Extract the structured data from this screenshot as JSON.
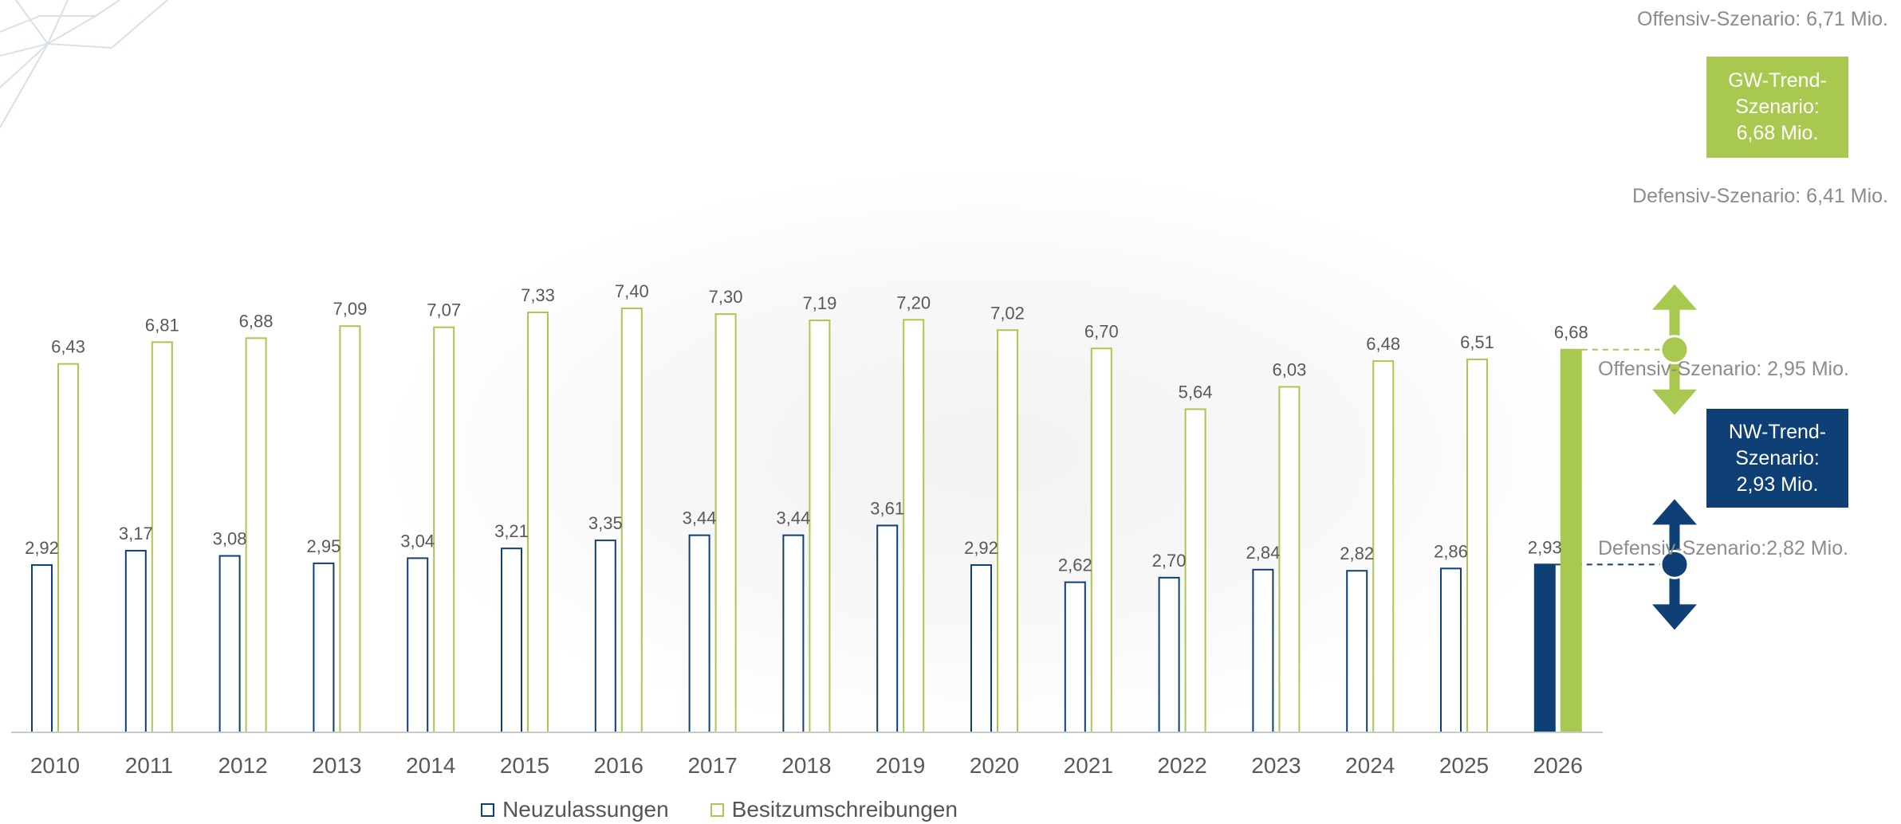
{
  "chart_data": {
    "type": "bar",
    "categories": [
      "2010",
      "2011",
      "2012",
      "2013",
      "2014",
      "2015",
      "2016",
      "2017",
      "2018",
      "2019",
      "2020",
      "2021",
      "2022",
      "2023",
      "2024",
      "2025",
      "2026"
    ],
    "series": [
      {
        "name": "Neuzulassungen",
        "values": [
          2.92,
          3.17,
          3.08,
          2.95,
          3.04,
          3.21,
          3.35,
          3.44,
          3.44,
          3.61,
          2.92,
          2.62,
          2.7,
          2.84,
          2.82,
          2.86,
          2.93
        ],
        "labels": [
          "2,92",
          "3,17",
          "3,08",
          "2,95",
          "3,04",
          "3,21",
          "3,35",
          "3,44",
          "3,44",
          "3,61",
          "2,92",
          "2,62",
          "2,70",
          "2,84",
          "2,82",
          "2,86",
          "2,93"
        ],
        "color": "#0e3f75"
      },
      {
        "name": "Besitzumschreibungen",
        "values": [
          6.43,
          6.81,
          6.88,
          7.09,
          7.07,
          7.33,
          7.4,
          7.3,
          7.19,
          7.2,
          7.02,
          6.7,
          5.64,
          6.03,
          6.48,
          6.51,
          6.68
        ],
        "labels": [
          "6,43",
          "6,81",
          "6,88",
          "7,09",
          "7,07",
          "7,33",
          "7,40",
          "7,30",
          "7,19",
          "7,20",
          "7,02",
          "6,70",
          "5,64",
          "6,03",
          "6,48",
          "6,51",
          "6,68"
        ],
        "color": "#a9c84f"
      }
    ],
    "forecast_category": "2026",
    "ylim": [
      0,
      7.4
    ],
    "legend_position": "bottom",
    "grid": false
  },
  "gw_box": {
    "line1": "GW-Trend-",
    "line2": "Szenario:",
    "line3": "6,68 Mio."
  },
  "nw_box": {
    "line1": "NW-Trend-",
    "line2": "Szenario:",
    "line3": "2,93 Mio."
  },
  "scenarios": {
    "gw_offensiv": "Offensiv-Szenario: 6,71 Mio.",
    "gw_defensiv": "Defensiv-Szenario: 6,41 Mio.",
    "nw_offensiv": "Offensiv-Szenario: 2,95 Mio.",
    "nw_defensiv": "Defensiv-Szenario:2,82 Mio."
  },
  "legend": [
    {
      "label": "Neuzulassungen",
      "color": "#0e3f75"
    },
    {
      "label": "Besitzumschreibungen",
      "color": "#a9c84f"
    }
  ]
}
